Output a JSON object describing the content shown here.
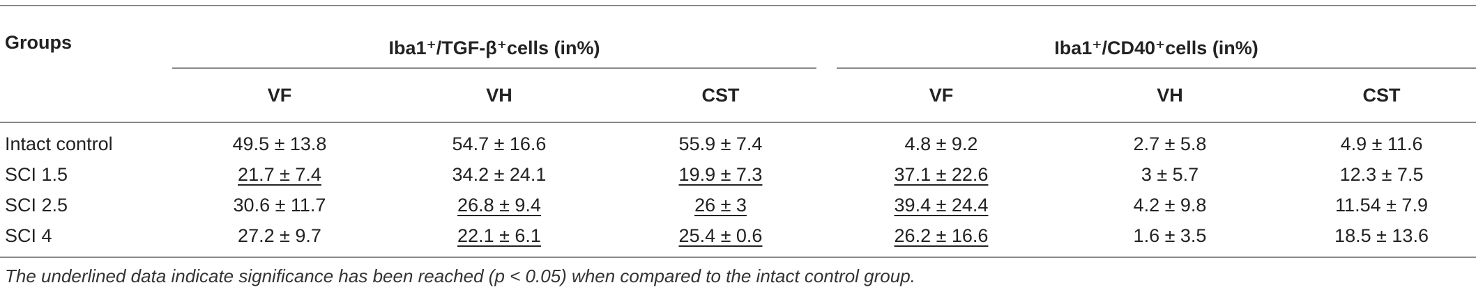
{
  "table": {
    "corner": "Groups",
    "groups": [
      "Iba1⁺/TGF-β⁺cells (in%)",
      "Iba1⁺/CD40⁺cells (in%)"
    ],
    "columns": [
      "VF",
      "VH",
      "CST",
      "VF",
      "VH",
      "CST"
    ],
    "rows": [
      {
        "group": "Intact control",
        "cells": [
          "49.5 ± 13.8",
          "54.7 ± 16.6",
          "55.9 ± 7.4",
          "4.8 ± 9.2",
          "2.7 ± 5.8",
          "4.9 ± 11.6"
        ],
        "underlined": [
          false,
          false,
          false,
          false,
          false,
          false
        ]
      },
      {
        "group": "SCI 1.5",
        "cells": [
          "21.7 ± 7.4",
          "34.2 ± 24.1",
          "19.9 ± 7.3",
          "37.1 ± 22.6",
          "3 ± 5.7",
          "12.3 ± 7.5"
        ],
        "underlined": [
          true,
          false,
          true,
          true,
          false,
          false
        ]
      },
      {
        "group": "SCI 2.5",
        "cells": [
          "30.6 ± 11.7",
          "26.8 ± 9.4",
          "26 ± 3",
          "39.4 ± 24.4",
          "4.2 ± 9.8",
          "11.54 ± 7.9"
        ],
        "underlined": [
          false,
          true,
          true,
          true,
          false,
          false
        ]
      },
      {
        "group": "SCI 4",
        "cells": [
          "27.2 ± 9.7",
          "22.1 ± 6.1",
          "25.4 ± 0.6",
          "26.2 ± 16.6",
          "1.6 ± 3.5",
          "18.5 ± 13.6"
        ],
        "underlined": [
          false,
          true,
          true,
          true,
          false,
          false
        ]
      }
    ],
    "footnote": "The underlined data indicate significance has been reached (p < 0.05) when compared to the intact control group."
  }
}
